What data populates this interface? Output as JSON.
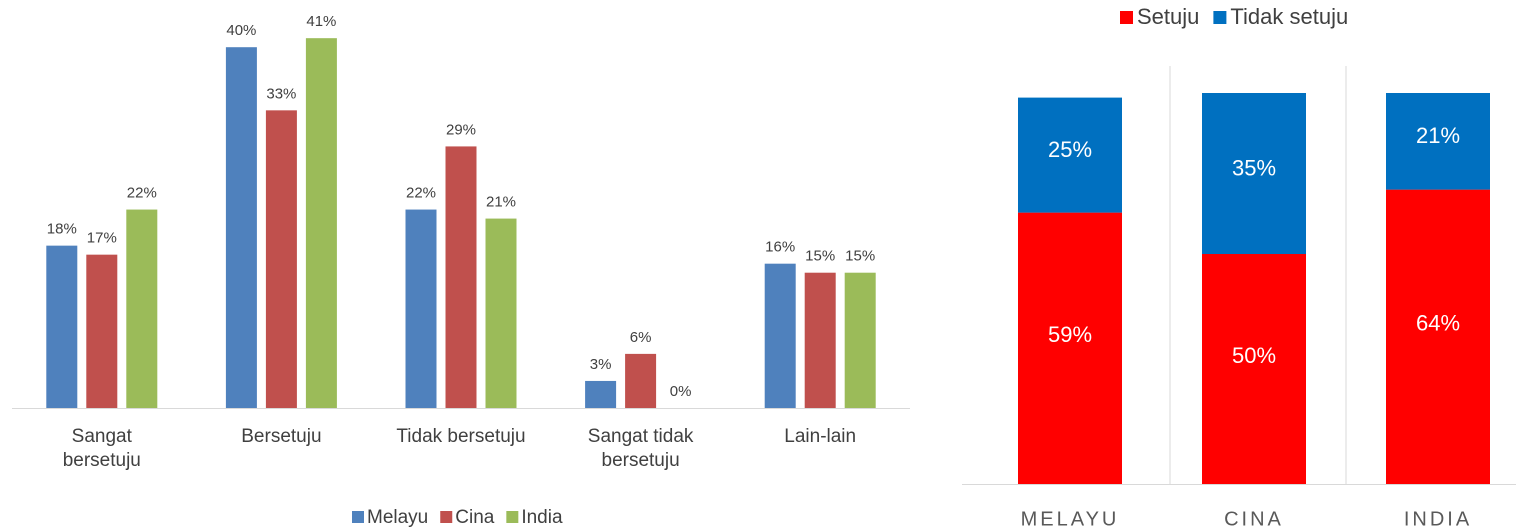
{
  "chart_data": [
    {
      "type": "bar",
      "categories": [
        "Sangat bersetuju",
        "Bersetuju",
        "Tidak bersetuju",
        "Sangat tidak bersetuju",
        "Lain-lain"
      ],
      "series": [
        {
          "name": "Melayu",
          "color": "#4f81bd",
          "values": [
            18,
            40,
            22,
            3,
            16
          ],
          "value_labels": [
            "18%",
            "40%",
            "22%",
            "3%",
            "16%"
          ]
        },
        {
          "name": "Cina",
          "color": "#c0504d",
          "values": [
            17,
            33,
            29,
            6,
            15
          ],
          "value_labels": [
            "17%",
            "33%",
            "29%",
            "6%",
            "15%"
          ]
        },
        {
          "name": "India",
          "color": "#9bbb59",
          "values": [
            22,
            41,
            21,
            0,
            15
          ],
          "value_labels": [
            "22%",
            "41%",
            "21%",
            "0%",
            "15%"
          ]
        }
      ],
      "legend": "bottom"
    },
    {
      "type": "stacked_bar",
      "categories": [
        "MELAYU",
        "CINA",
        "INDIA"
      ],
      "series": [
        {
          "name": "Setuju",
          "color": "#ff0000",
          "values": [
            59,
            50,
            64
          ],
          "value_labels": [
            "59%",
            "50%",
            "64%"
          ]
        },
        {
          "name": "Tidak setuju",
          "color": "#0070c0",
          "values": [
            25,
            35,
            21
          ],
          "value_labels": [
            "25%",
            "35%",
            "21%"
          ]
        }
      ],
      "legend": "top"
    }
  ]
}
